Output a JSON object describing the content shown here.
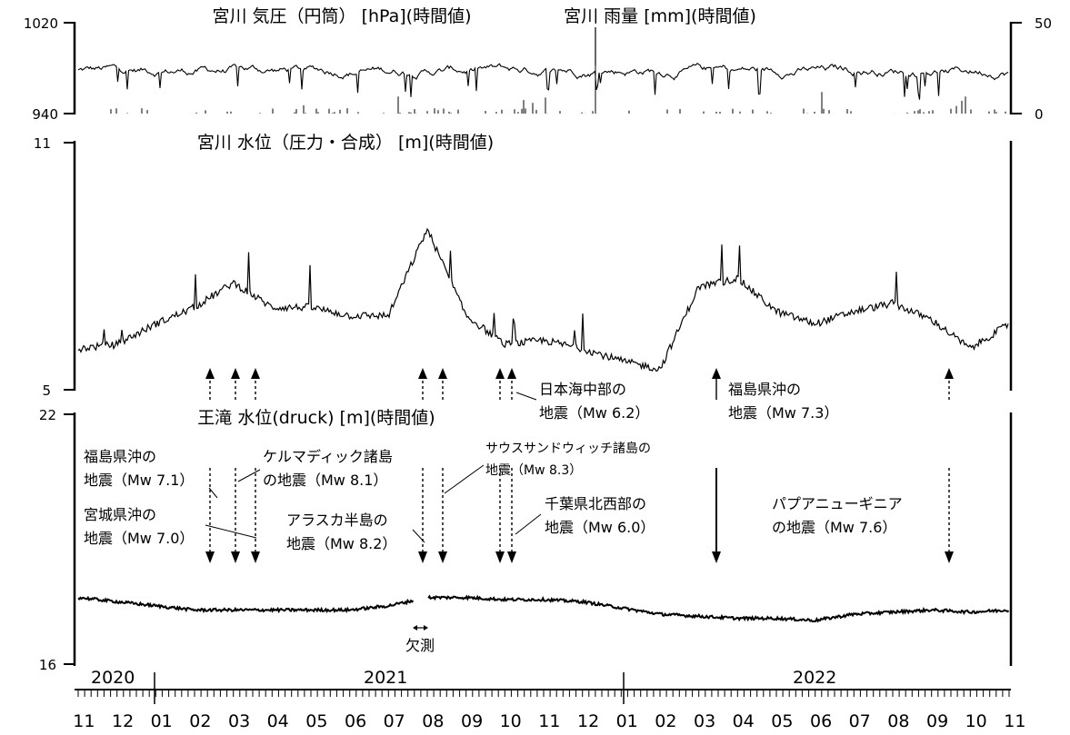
{
  "chart_data": [
    {
      "type": "line",
      "panel": "top",
      "series": [
        {
          "name": "宮川 気圧（円筒） [hPa](時間値)",
          "axis": "left",
          "ylim": [
            940,
            1020
          ],
          "ticks": [
            "1020",
            "940"
          ],
          "baseline_approx": 978
        },
        {
          "name": "宮川 雨量 [mm](時間値)",
          "axis": "right",
          "ylim": [
            0,
            50
          ],
          "ticks": [
            "50",
            "0"
          ],
          "peak_approx": 28
        }
      ]
    },
    {
      "type": "line",
      "panel": "middle",
      "title": "宮川 水位（圧力・合成） [m](時間値)",
      "ylim": [
        5,
        11
      ],
      "ticks": [
        "11",
        "5"
      ],
      "x": [
        "2020-11",
        "2020-12",
        "2021-01",
        "2021-02",
        "2021-03",
        "2021-04",
        "2021-05",
        "2021-06",
        "2021-07",
        "2021-08",
        "2021-09",
        "2021-10",
        "2021-11",
        "2021-12",
        "2022-01",
        "2022-02",
        "2022-03",
        "2022-04",
        "2022-05",
        "2022-06",
        "2022-07",
        "2022-08",
        "2022-09",
        "2022-10",
        "2022-11"
      ],
      "values": [
        6.0,
        6.1,
        6.6,
        7.0,
        7.6,
        7.0,
        7.0,
        6.8,
        6.8,
        8.9,
        6.8,
        6.1,
        6.2,
        6.0,
        5.7,
        5.5,
        7.5,
        7.7,
        6.9,
        6.6,
        6.9,
        7.1,
        6.7,
        6.0,
        6.6
      ]
    },
    {
      "type": "line",
      "panel": "bottom",
      "title": "王滝 水位(druck) [m](時間値)",
      "ylim": [
        16,
        22
      ],
      "ticks": [
        "22",
        "16"
      ],
      "x": [
        "2020-11",
        "2020-12",
        "2021-01",
        "2021-02",
        "2021-03",
        "2021-04",
        "2021-05",
        "2021-06",
        "2021-07",
        "2021-08",
        "2021-09",
        "2021-10",
        "2021-11",
        "2021-12",
        "2022-01",
        "2022-02",
        "2022-03",
        "2022-04",
        "2022-05",
        "2022-06",
        "2022-07",
        "2022-08",
        "2022-09",
        "2022-10",
        "2022-11"
      ],
      "values": [
        17.6,
        17.5,
        17.4,
        17.3,
        17.3,
        17.3,
        17.3,
        17.3,
        17.4,
        17.6,
        17.6,
        17.55,
        17.55,
        17.5,
        17.35,
        17.2,
        17.15,
        17.1,
        17.1,
        17.05,
        17.2,
        17.25,
        17.3,
        17.25,
        17.3
      ]
    }
  ],
  "annotations": {
    "quake_fukushima_2021": [
      "福島県沖の",
      "地震（Mw 7.1）"
    ],
    "quake_miyagi": [
      "宮城県沖の",
      "地震（Mw 7.0）"
    ],
    "quake_kermadec": [
      "ケルマディック諸島",
      "の地震（Mw 8.1）"
    ],
    "quake_alaska": [
      "アラスカ半島の",
      "地震（Mw 8.2）"
    ],
    "quake_south_sandwich": [
      "サウスサンドウィッチ諸島の",
      "地震（Mw 8.3）"
    ],
    "quake_chiba": [
      "千葉県北西部の",
      "地震（Mw 6.0）"
    ],
    "quake_japan_sea": [
      "日本海中部の",
      "地震（Mw 6.2）"
    ],
    "quake_fukushima_2022": [
      "福島県沖の",
      "地震（Mw 7.3）"
    ],
    "quake_png": [
      "パプアニューギニア",
      "の地震（Mw 7.6）"
    ],
    "missing": "欠測"
  },
  "x_axis": {
    "years": [
      "2020",
      "2021",
      "2022"
    ],
    "months": [
      "11",
      "12",
      "01",
      "02",
      "03",
      "04",
      "05",
      "06",
      "07",
      "08",
      "09",
      "10",
      "11",
      "12",
      "01",
      "02",
      "03",
      "04",
      "05",
      "06",
      "07",
      "08",
      "09",
      "10",
      "11"
    ]
  },
  "colors": {
    "line": "#000000",
    "background": "#ffffff"
  }
}
